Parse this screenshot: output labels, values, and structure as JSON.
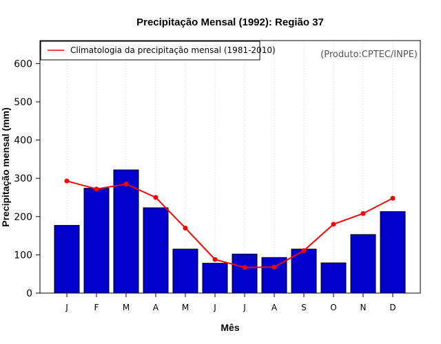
{
  "chart_data": {
    "type": "bar",
    "title": "Precipitação Mensal (1992): Região 37",
    "xlabel": "Mês",
    "ylabel": "Precipitação mensal (mm)",
    "categories": [
      "J",
      "F",
      "M",
      "A",
      "M",
      "J",
      "J",
      "A",
      "S",
      "O",
      "N",
      "D"
    ],
    "series": [
      {
        "name": "Precipitação mensal (1992)",
        "kind": "bar",
        "color": "#0000cc",
        "values": [
          177,
          274,
          322,
          223,
          115,
          78,
          102,
          93,
          115,
          79,
          153,
          213
        ]
      },
      {
        "name": "Climatologia da precipitação mensal (1981-2010)",
        "kind": "line",
        "color": "#ff0000",
        "values": [
          293,
          272,
          285,
          250,
          170,
          88,
          67,
          68,
          111,
          180,
          208,
          248
        ]
      }
    ],
    "ylim": [
      0,
      660
    ],
    "yticks": [
      0,
      100,
      200,
      300,
      400,
      500,
      600
    ],
    "grid": "vertical dotted",
    "legend": {
      "position": "top-left",
      "label": "Climatologia da precipitação mensal (1981-2010)"
    },
    "annotation": "(Produto:CPTEC/INPE)"
  }
}
